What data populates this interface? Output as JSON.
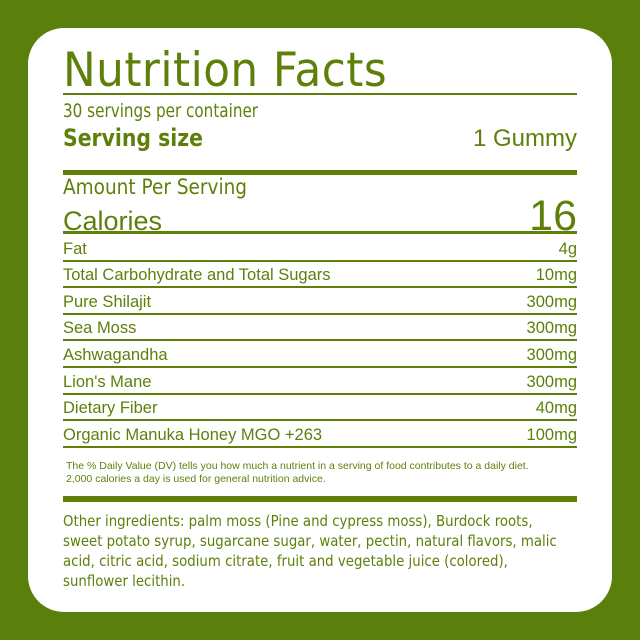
{
  "title": "Nutrition Facts",
  "servings_per_container": "30 servings per container",
  "serving_size": {
    "label": "Serving size",
    "value": "1 Gummy"
  },
  "amount_per_serving": "Amount Per Serving",
  "calories": {
    "label": "Calories",
    "value": "16"
  },
  "nutrients": [
    {
      "name": "Fat",
      "amount": "4g"
    },
    {
      "name": "Total Carbohydrate and Total Sugars",
      "amount": "10mg"
    },
    {
      "name": "Pure Shilajit",
      "amount": "300mg"
    },
    {
      "name": "Sea Moss",
      "amount": "300mg"
    },
    {
      "name": "Ashwagandha",
      "amount": "300mg"
    },
    {
      "name": "Lion's Mane",
      "amount": "300mg"
    },
    {
      "name": "Dietary Fiber",
      "amount": "40mg"
    },
    {
      "name": "Organic Manuka Honey MGO +263",
      "amount": "100mg"
    }
  ],
  "dv_note": {
    "line1": "The % Daily  Value (DV) tells you how much a nutrient in a serving of food contributes to a daily diet.",
    "line2": "2,000 calories a day is used for general nutrition advice."
  },
  "other_ingredients": "Other ingredients: palm moss (Pine and cypress moss), Burdock roots, sweet potato syrup, sugarcane sugar, water, pectin, natural flavors, malic acid, citric acid, sodium citrate, fruit and vegetable juice (colored), sunflower lecithin.",
  "colors": {
    "accent": "#5e800b",
    "background": "#5b7f0c",
    "card": "#ffffff"
  }
}
